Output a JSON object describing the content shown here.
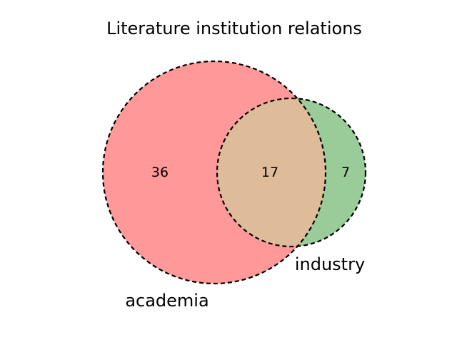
{
  "title": "Literature institution relations",
  "chart_data": {
    "type": "venn",
    "title": "Literature institution relations",
    "sets": [
      {
        "name": "academia",
        "only_count": "36",
        "color": "#ff9999"
      },
      {
        "name": "industry",
        "only_count": "7",
        "color": "#99cc99"
      }
    ],
    "intersection": {
      "count": "17",
      "color": "#dfbc99"
    },
    "outline": {
      "color": "#000000",
      "style": "dashed"
    }
  }
}
